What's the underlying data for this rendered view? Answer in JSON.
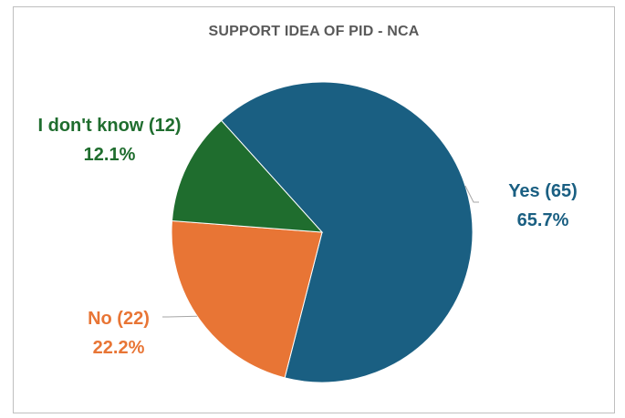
{
  "chart_data": {
    "type": "pie",
    "title": "SUPPORT IDEA OF PID - NCA",
    "categories": [
      "Yes (65)",
      "No (22)",
      "I don't know (12)"
    ],
    "values": [
      65,
      22,
      12
    ],
    "percent_labels": [
      "65.7%",
      "22.2%",
      "12.1%"
    ],
    "colors": [
      "#1a5f82",
      "#e87535",
      "#1f6d2e"
    ],
    "label_colors": [
      "#1a5f82",
      "#e87535",
      "#1f6d2e"
    ],
    "legend": "none"
  }
}
